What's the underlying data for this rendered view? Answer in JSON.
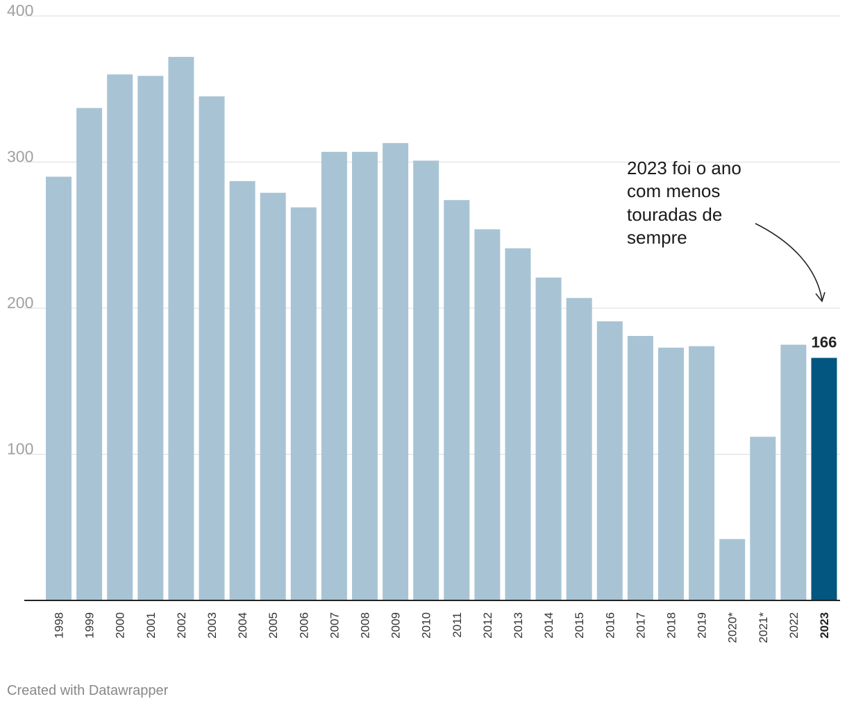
{
  "chart_data": {
    "type": "bar",
    "categories": [
      "1998",
      "1999",
      "2000",
      "2001",
      "2002",
      "2003",
      "2004",
      "2005",
      "2006",
      "2007",
      "2008",
      "2009",
      "2010",
      "2011",
      "2012",
      "2013",
      "2014",
      "2015",
      "2016",
      "2017",
      "2018",
      "2019",
      "2020*",
      "2021*",
      "2022",
      "2023"
    ],
    "values": [
      290,
      337,
      360,
      359,
      372,
      345,
      287,
      279,
      269,
      307,
      307,
      313,
      301,
      274,
      254,
      241,
      221,
      207,
      191,
      181,
      173,
      174,
      42,
      112,
      175,
      166
    ],
    "highlight_index": 25,
    "highlight_label": "166",
    "ylim": [
      0,
      400
    ],
    "yticks": [
      "100",
      "200",
      "300",
      "400"
    ],
    "grid": true,
    "annotation": [
      "2023 foi o ano",
      "com menos",
      "touradas de",
      "sempre"
    ],
    "colors": {
      "bar": "#a8c4d4",
      "highlight": "#02567f"
    }
  },
  "footer": {
    "credit": "Created with Datawrapper"
  }
}
